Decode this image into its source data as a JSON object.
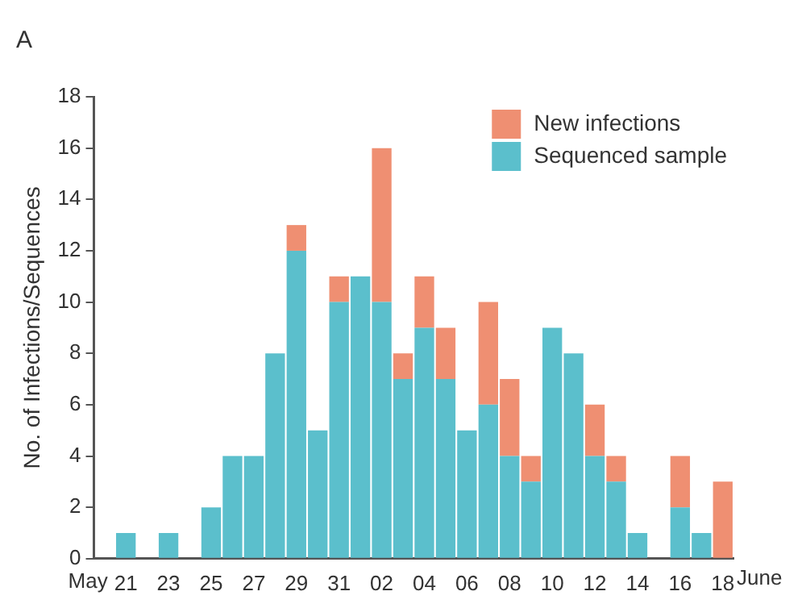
{
  "chart_data": {
    "type": "bar",
    "stacked": true,
    "ylabel": "No. of Infections/Sequences",
    "xlabel": "June",
    "annotations": [
      "A",
      "May"
    ],
    "categories": [
      null,
      "21",
      null,
      "23",
      null,
      "25",
      null,
      "27",
      null,
      "29",
      null,
      "31",
      null,
      "02",
      null,
      "04",
      null,
      "06",
      null,
      "08",
      null,
      "10",
      null,
      "12",
      null,
      "14",
      null,
      "16",
      null,
      "18"
    ],
    "series": [
      {
        "name": "Sequenced sample",
        "color": "#5bbfcc",
        "values": [
          0,
          1,
          0,
          1,
          0,
          2,
          4,
          4,
          8,
          12,
          5,
          10,
          11,
          10,
          7,
          9,
          7,
          5,
          6,
          4,
          3,
          9,
          8,
          4,
          3,
          1,
          0,
          2,
          1,
          0
        ]
      },
      {
        "name": "New infections",
        "color": "#ef8f72",
        "values": [
          0,
          0,
          0,
          0,
          0,
          0,
          0,
          0,
          0,
          1,
          0,
          1,
          0,
          6,
          1,
          2,
          2,
          0,
          4,
          3,
          1,
          0,
          0,
          2,
          1,
          0,
          0,
          2,
          0,
          3
        ]
      }
    ],
    "ylim": [
      0,
      18
    ],
    "yticks": [
      0,
      2,
      4,
      6,
      8,
      10,
      12,
      14,
      16,
      18
    ],
    "grid": false,
    "legend": "top right"
  }
}
